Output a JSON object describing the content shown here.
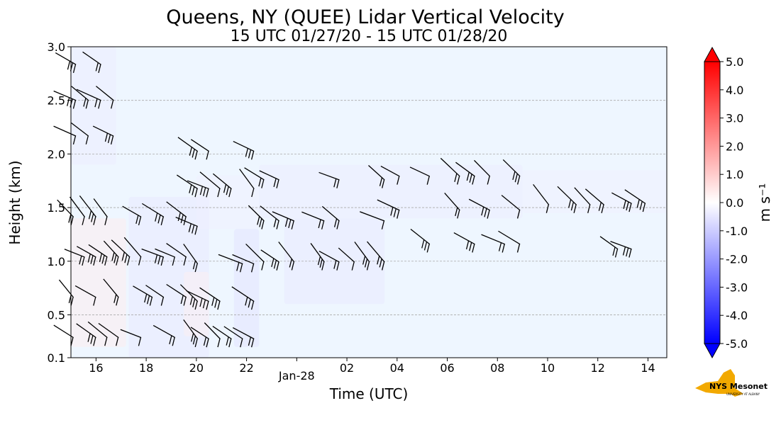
{
  "chart_data": {
    "type": "heatmap",
    "title": "Queens, NY (QUEE) Lidar Vertical Velocity",
    "subtitle": "15 UTC 01/27/20 - 15 UTC 01/28/20",
    "xlabel": "Time (UTC)",
    "ylabel": "Height (km)",
    "colorbar_label": "m s⁻¹",
    "xlim": [
      15.0,
      38.75
    ],
    "ylim": [
      0.1,
      3.0
    ],
    "x_ticks": [
      {
        "value": 16,
        "label": "16"
      },
      {
        "value": 18,
        "label": "18"
      },
      {
        "value": 20,
        "label": "20"
      },
      {
        "value": 22,
        "label": "22"
      },
      {
        "value": 24,
        "label": "Jan-28"
      },
      {
        "value": 26,
        "label": "02"
      },
      {
        "value": 28,
        "label": "04"
      },
      {
        "value": 30,
        "label": "06"
      },
      {
        "value": 32,
        "label": "08"
      },
      {
        "value": 34,
        "label": "10"
      },
      {
        "value": 36,
        "label": "12"
      },
      {
        "value": 38,
        "label": "14"
      }
    ],
    "y_ticks": [
      {
        "value": 0.1,
        "label": "0.1"
      },
      {
        "value": 0.5,
        "label": "0.5"
      },
      {
        "value": 1.0,
        "label": "1.0"
      },
      {
        "value": 1.5,
        "label": "1.5"
      },
      {
        "value": 2.0,
        "label": "2.0"
      },
      {
        "value": 2.5,
        "label": "2.5"
      },
      {
        "value": 3.0,
        "label": "3.0"
      }
    ],
    "colorbar": {
      "range": [
        -5.0,
        5.0
      ],
      "ticks": [
        "5.0",
        "4.0",
        "3.0",
        "2.0",
        "1.0",
        "0.0",
        "-1.0",
        "-2.0",
        "-3.0",
        "-4.0",
        "-5.0"
      ],
      "tick_values": [
        5,
        4,
        3,
        2,
        1,
        0,
        -1,
        -2,
        -3,
        -4,
        -5
      ],
      "extend": "both",
      "colors": {
        "min": "#0000ff",
        "mid": "#ffffff",
        "max": "#ff0000"
      }
    },
    "background_color": "#eef6ff",
    "grid": "horizontal dashed",
    "weak_downward_regions": [
      {
        "t0": 15.0,
        "t1": 16.8,
        "h0": 1.9,
        "h1": 3.0,
        "w": -0.4
      },
      {
        "t0": 17.3,
        "t1": 20.5,
        "h0": 0.1,
        "h1": 1.6,
        "w": -0.5
      },
      {
        "t0": 20.0,
        "t1": 22.5,
        "h0": 1.3,
        "h1": 1.8,
        "w": -0.3
      },
      {
        "t0": 21.5,
        "t1": 22.5,
        "h0": 0.2,
        "h1": 1.3,
        "w": -0.6
      },
      {
        "t0": 22.5,
        "t1": 33.0,
        "h0": 1.4,
        "h1": 1.9,
        "w": -0.4
      },
      {
        "t0": 23.5,
        "t1": 27.5,
        "h0": 0.6,
        "h1": 1.4,
        "w": -0.5
      },
      {
        "t0": 33.0,
        "t1": 38.75,
        "h0": 1.45,
        "h1": 1.85,
        "w": -0.3
      }
    ],
    "weak_upward_regions": [
      {
        "t0": 15.0,
        "t1": 17.2,
        "h0": 0.2,
        "h1": 1.4,
        "w": 0.4
      },
      {
        "t0": 19.5,
        "t1": 20.5,
        "h0": 0.3,
        "h1": 0.9,
        "w": 0.3
      }
    ],
    "wind_barbs": {
      "description": "Wind barbs indicating horizontal wind, generally from the west/northwest",
      "count_estimate": 120
    }
  },
  "logo": {
    "text": "NYS Mesonet",
    "subtext": "UNIVERSITY AT ALBANY",
    "color_state": "#f2a900",
    "color_text": "#4b2e83"
  }
}
